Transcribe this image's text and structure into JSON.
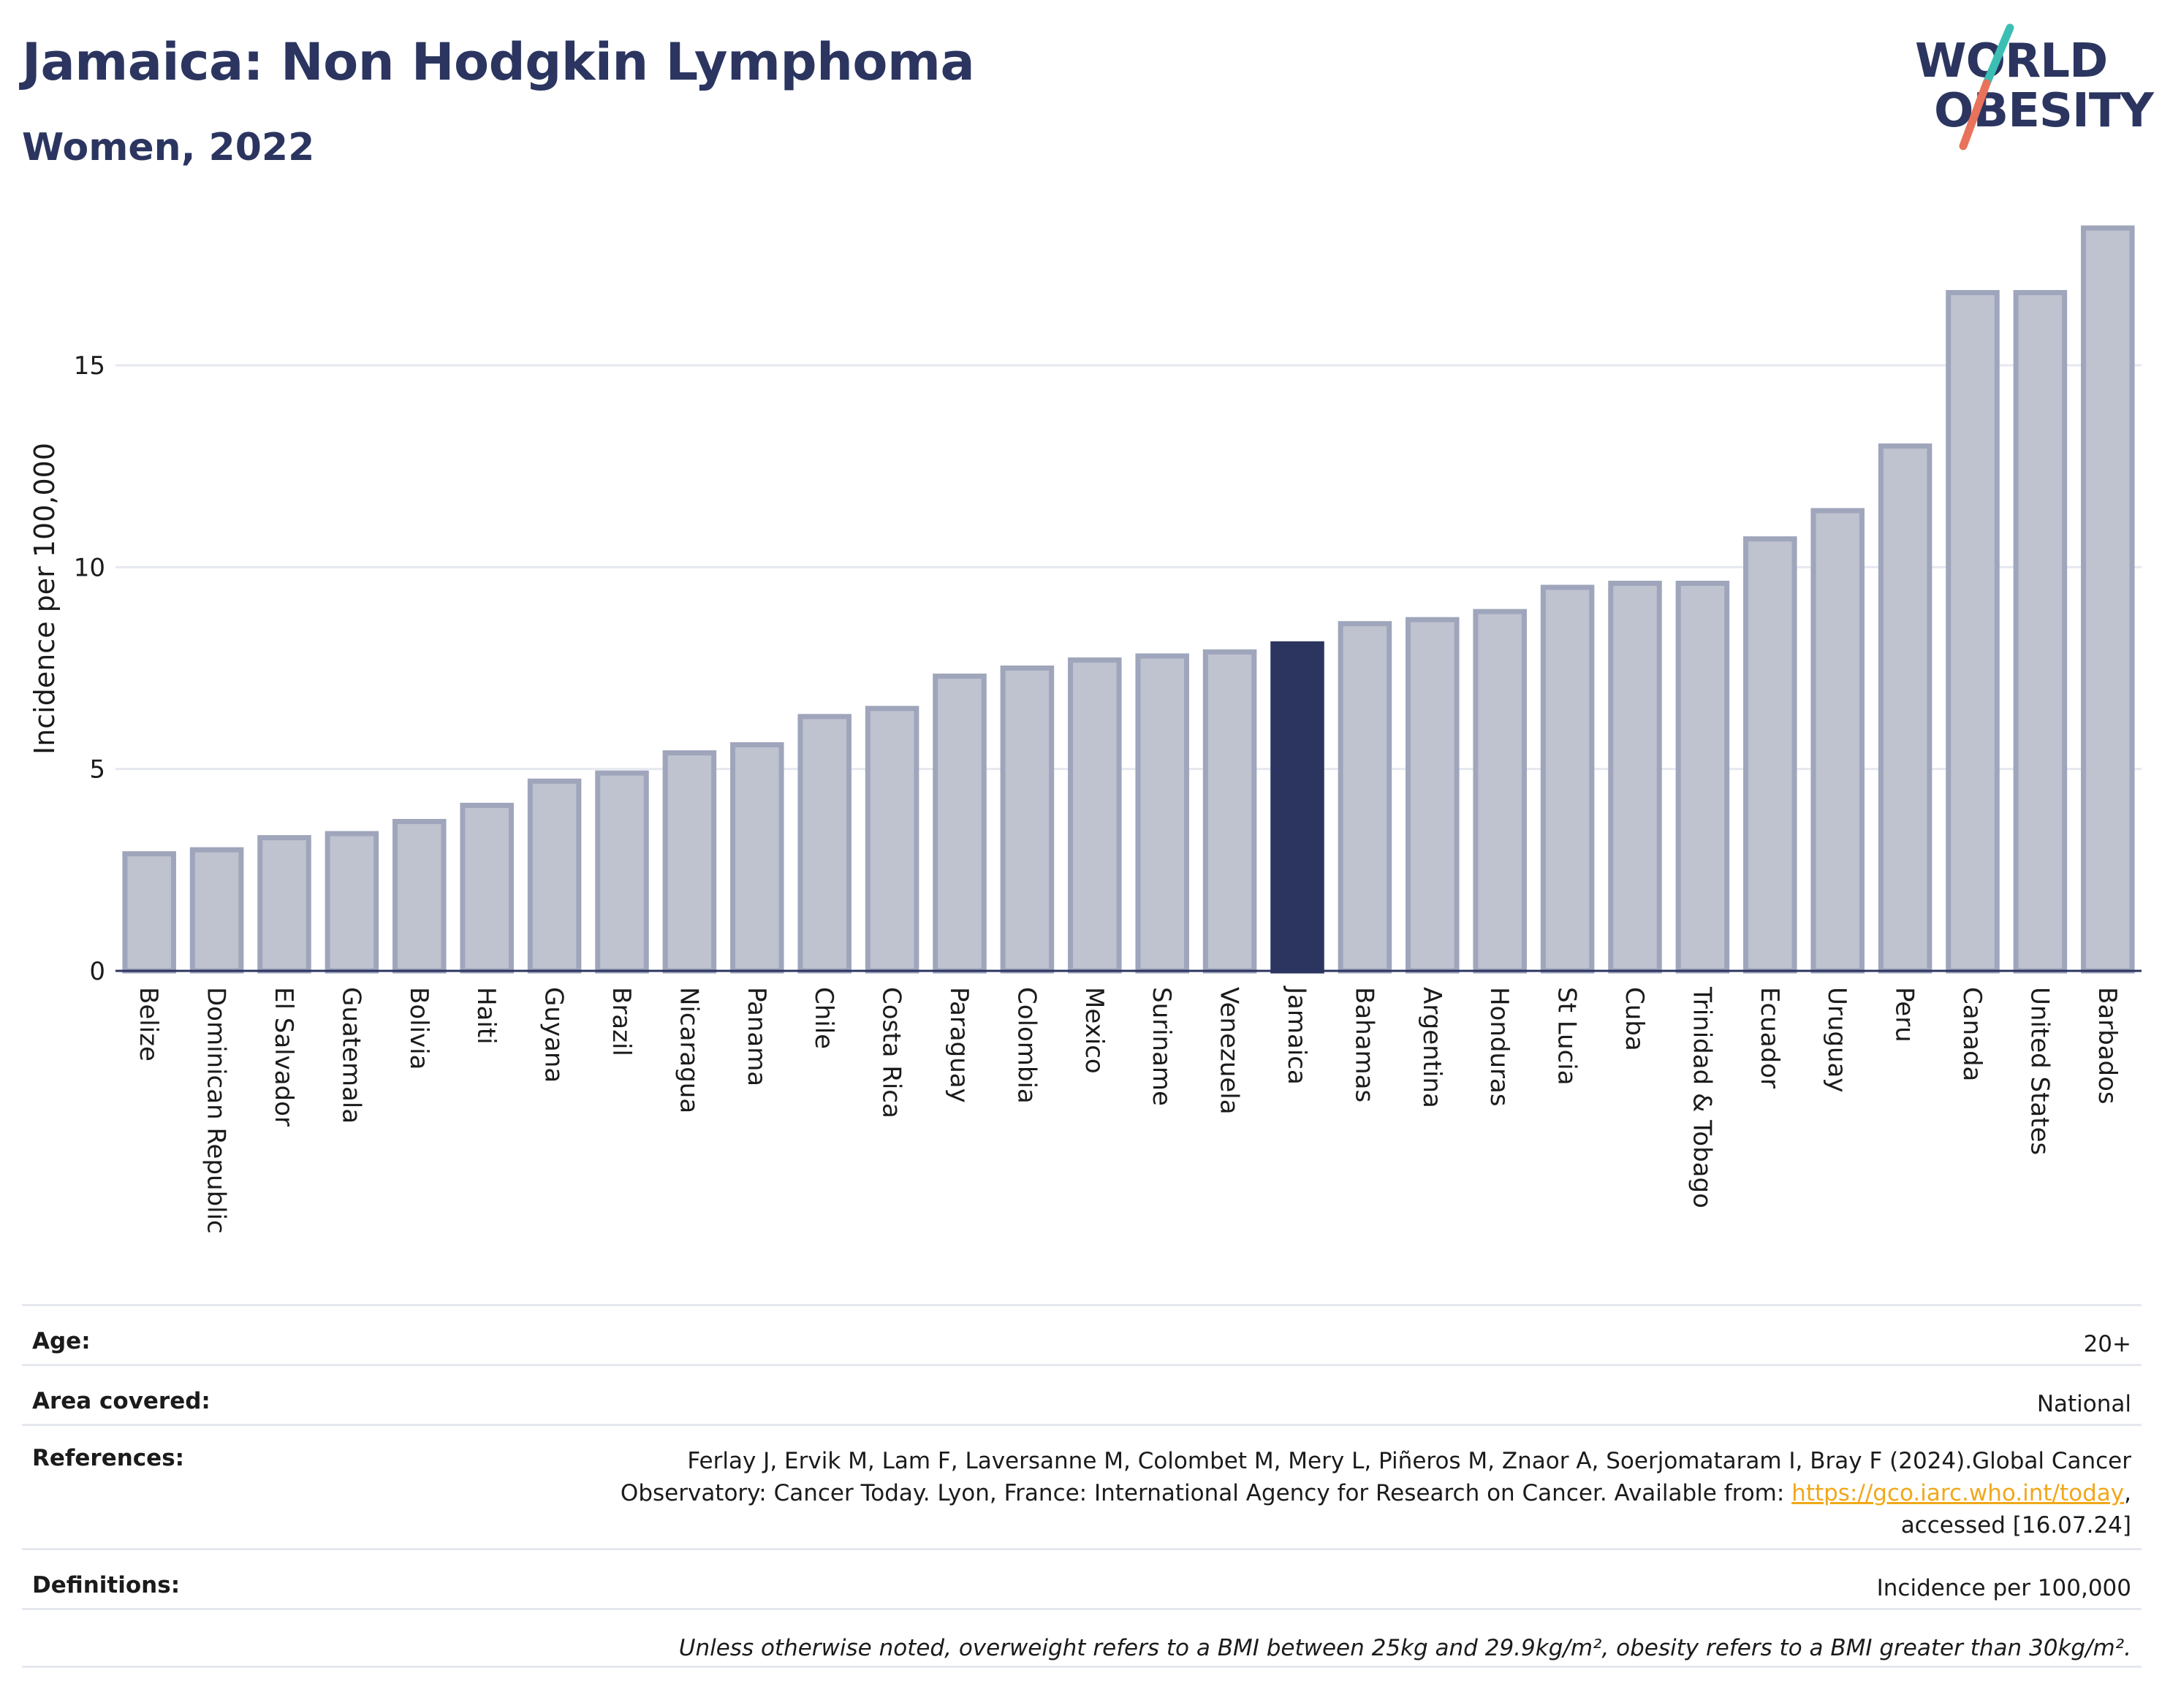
{
  "header": {
    "title": "Jamaica: Non Hodgkin Lymphoma",
    "subtitle": "Women, 2022"
  },
  "logo": {
    "line1": "WORLD",
    "line2": "OBESITY",
    "colors": {
      "text": "#2b3560",
      "slash_top": "#3bbfb5",
      "slash_bottom": "#e8725a"
    }
  },
  "colors": {
    "bar": "#bfc2cf",
    "bar_border": "#9fa5bb",
    "highlight": "#2b3560",
    "grid": "#e6e8f0",
    "axis": "#2b3560"
  },
  "chart_data": {
    "type": "bar",
    "ylabel": "Incidence per 100,000",
    "ylim": [
      0,
      18.8
    ],
    "yticks": [
      0,
      5,
      10,
      15
    ],
    "grid": true,
    "highlight": "Jamaica",
    "categories": [
      "Belize",
      "Dominican Republic",
      "El Salvador",
      "Guatemala",
      "Bolivia",
      "Haiti",
      "Guyana",
      "Brazil",
      "Nicaragua",
      "Panama",
      "Chile",
      "Costa Rica",
      "Paraguay",
      "Colombia",
      "Mexico",
      "Suriname",
      "Venezuela",
      "Jamaica",
      "Bahamas",
      "Argentina",
      "Honduras",
      "St Lucia",
      "Cuba",
      "Trinidad & Tobago",
      "Ecuador",
      "Uruguay",
      "Peru",
      "Canada",
      "United States",
      "Barbados"
    ],
    "values": [
      2.9,
      3.0,
      3.3,
      3.4,
      3.7,
      4.1,
      4.7,
      4.9,
      5.4,
      5.6,
      6.3,
      6.5,
      7.3,
      7.5,
      7.7,
      7.8,
      7.9,
      8.1,
      8.6,
      8.7,
      8.9,
      9.5,
      9.6,
      9.6,
      10.7,
      11.4,
      13.0,
      16.8,
      16.8,
      18.4
    ]
  },
  "info": {
    "age": {
      "label": "Age:",
      "value": "20+"
    },
    "area": {
      "label": "Area covered:",
      "value": "National"
    },
    "references": {
      "label": "References:",
      "line1": "Ferlay J, Ervik M, Lam F, Laversanne M, Colombet M, Mery L, Piñeros M, Znaor A, Soerjomataram I, Bray F (2024).Global Cancer",
      "line2_prefix": "Observatory: Cancer Today. Lyon, France: International Agency for Research on Cancer. Available from: ",
      "link": "https://gco.iarc.who.int/today",
      "line2_suffix": ",",
      "line3": "accessed [16.07.24]"
    },
    "definitions": {
      "label": "Definitions:",
      "value": "Incidence per 100,000"
    },
    "note": "Unless otherwise noted, overweight refers to a BMI between 25kg and 29.9kg/m², obesity refers to a BMI greater than 30kg/m²."
  }
}
